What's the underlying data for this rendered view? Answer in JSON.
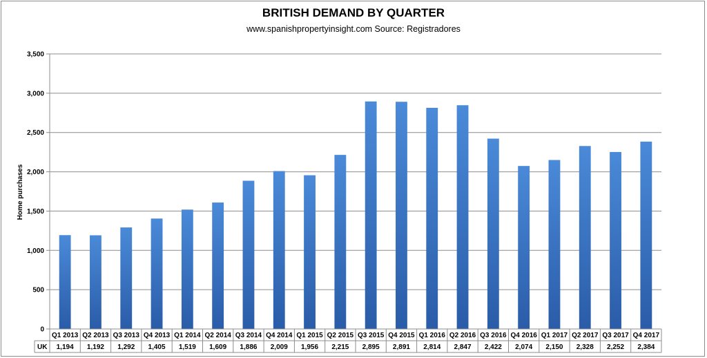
{
  "chart_data": {
    "type": "bar",
    "title": "BRITISH DEMAND BY QUARTER",
    "subtitle": "www.spanishpropertyinsight.com  Source: Registradores",
    "ylabel": "Home purchases",
    "xlabel": "",
    "ylim": [
      0,
      3500
    ],
    "y_ticks": [
      0,
      500,
      1000,
      1500,
      2000,
      2500,
      3000,
      3500
    ],
    "y_tick_labels": [
      "0",
      "500",
      "1,000",
      "1,500",
      "2,000",
      "2,500",
      "3,000",
      "3,500"
    ],
    "grid": true,
    "legend": "data table",
    "categories": [
      "Q1 2013",
      "Q2 2013",
      "Q3 2013",
      "Q4 2013",
      "Q1 2014",
      "Q2 2014",
      "Q3 2014",
      "Q4 2014",
      "Q1 2015",
      "Q2 2015",
      "Q3 2015",
      "Q4 2015",
      "Q1 2016",
      "Q2 2016",
      "Q3 2016",
      "Q4 2016",
      "Q1 2017",
      "Q2 2017",
      "Q3 2017",
      "Q4 2017"
    ],
    "series": [
      {
        "name": "UK",
        "values": [
          1194,
          1192,
          1292,
          1405,
          1519,
          1609,
          1886,
          2009,
          1956,
          2215,
          2895,
          2891,
          2814,
          2847,
          2422,
          2074,
          2150,
          2328,
          2252,
          2384
        ],
        "value_labels": [
          "1,194",
          "1,192",
          "1,292",
          "1,405",
          "1,519",
          "1,609",
          "1,886",
          "2,009",
          "1,956",
          "2,215",
          "2,895",
          "2,891",
          "2,814",
          "2,847",
          "2,422",
          "2,074",
          "2,150",
          "2,328",
          "2,252",
          "2,384"
        ],
        "color": "#3a78c8"
      }
    ],
    "colors": {
      "bar_light": "#4a8ad8",
      "bar_dark": "#2a5ca8",
      "grid": "#8c8c8c",
      "axis": "#8c8c8c"
    }
  }
}
